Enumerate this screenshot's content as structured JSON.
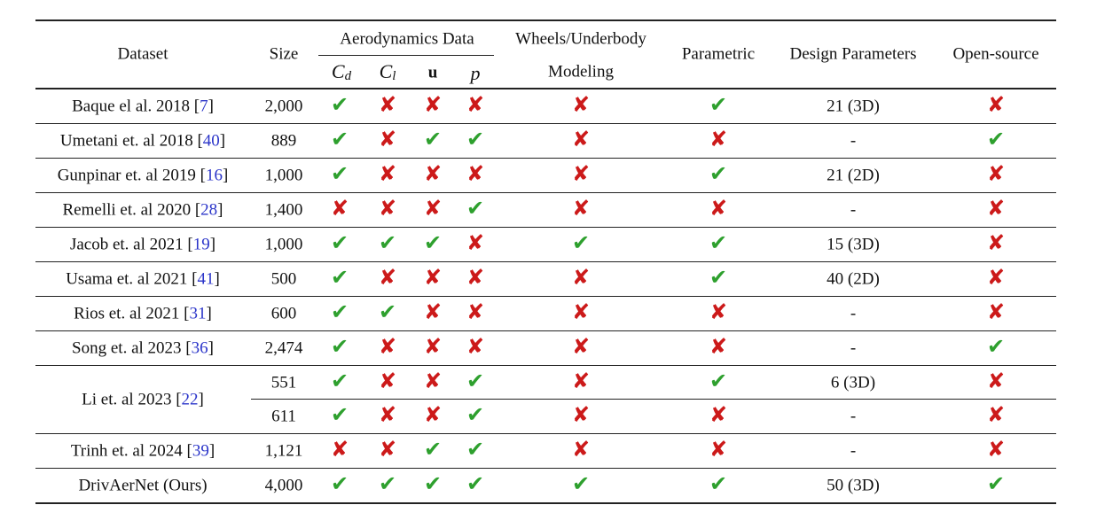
{
  "headers": {
    "dataset": "Dataset",
    "size": "Size",
    "aero_group": "Aerodynamics Data",
    "cd": {
      "base": "C",
      "sub": "d"
    },
    "cl": {
      "base": "C",
      "sub": "l"
    },
    "u": "u",
    "p": "p",
    "wheels_line1": "Wheels/Underbody",
    "wheels_line2": "Modeling",
    "parametric": "Parametric",
    "design_params": "Design Parameters",
    "open_source": "Open-source"
  },
  "symbols": {
    "yes": "✔",
    "no": "✘"
  },
  "colors": {
    "yes": "#2ea02e",
    "no": "#cc1a1a",
    "citation": "#2b35c9"
  },
  "rows": [
    {
      "dataset": "Baque el al. 2018 [",
      "ref": "7",
      "close": "]",
      "size": "2,000",
      "cd": "yes",
      "cl": "no",
      "u": "no",
      "p": "no",
      "wheels": "no",
      "parametric": "yes",
      "design": "21 (3D)",
      "open": "no"
    },
    {
      "dataset": "Umetani et. al 2018 [",
      "ref": "40",
      "close": "]",
      "size": "889",
      "cd": "yes",
      "cl": "no",
      "u": "yes",
      "p": "yes",
      "wheels": "no",
      "parametric": "no",
      "design": "-",
      "open": "yes"
    },
    {
      "dataset": "Gunpinar et. al 2019 [",
      "ref": "16",
      "close": "]",
      "size": "1,000",
      "cd": "yes",
      "cl": "no",
      "u": "no",
      "p": "no",
      "wheels": "no",
      "parametric": "yes",
      "design": "21 (2D)",
      "open": "no"
    },
    {
      "dataset": "Remelli et. al 2020 [",
      "ref": "28",
      "close": "]",
      "size": "1,400",
      "cd": "no",
      "cl": "no",
      "u": "no",
      "p": "yes",
      "wheels": "no",
      "parametric": "no",
      "design": "-",
      "open": "no"
    },
    {
      "dataset": "Jacob et. al 2021 [",
      "ref": "19",
      "close": "]",
      "size": "1,000",
      "cd": "yes",
      "cl": "yes",
      "u": "yes",
      "p": "no",
      "wheels": "yes",
      "parametric": "yes",
      "design": "15 (3D)",
      "open": "no"
    },
    {
      "dataset": "Usama et. al 2021 [",
      "ref": "41",
      "close": "]",
      "size": "500",
      "cd": "yes",
      "cl": "no",
      "u": "no",
      "p": "no",
      "wheels": "no",
      "parametric": "yes",
      "design": "40 (2D)",
      "open": "no"
    },
    {
      "dataset": "Rios et. al 2021 [",
      "ref": "31",
      "close": "]",
      "size": "600",
      "cd": "yes",
      "cl": "yes",
      "u": "no",
      "p": "no",
      "wheels": "no",
      "parametric": "no",
      "design": "-",
      "open": "no"
    },
    {
      "dataset": "Song et. al 2023 [",
      "ref": "36",
      "close": "]",
      "size": "2,474",
      "cd": "yes",
      "cl": "no",
      "u": "no",
      "p": "no",
      "wheels": "no",
      "parametric": "no",
      "design": "-",
      "open": "yes"
    },
    {
      "dataset": "Li et. al 2023 [",
      "ref": "22",
      "close": "]",
      "size": "551",
      "cd": "yes",
      "cl": "no",
      "u": "no",
      "p": "yes",
      "wheels": "no",
      "parametric": "yes",
      "design": "6 (3D)",
      "open": "no"
    },
    {
      "dataset": "",
      "ref": "",
      "close": "",
      "size": "611",
      "cd": "yes",
      "cl": "no",
      "u": "no",
      "p": "yes",
      "wheels": "no",
      "parametric": "no",
      "design": "-",
      "open": "no"
    },
    {
      "dataset": "Trinh et. al 2024 [",
      "ref": "39",
      "close": "]",
      "size": "1,121",
      "cd": "no",
      "cl": "no",
      "u": "yes",
      "p": "yes",
      "wheels": "no",
      "parametric": "no",
      "design": "-",
      "open": "no"
    },
    {
      "dataset": "DrivAerNet (Ours)",
      "ref": "",
      "close": "",
      "size": "4,000",
      "cd": "yes",
      "cl": "yes",
      "u": "yes",
      "p": "yes",
      "wheels": "yes",
      "parametric": "yes",
      "design": "50 (3D)",
      "open": "yes"
    }
  ]
}
